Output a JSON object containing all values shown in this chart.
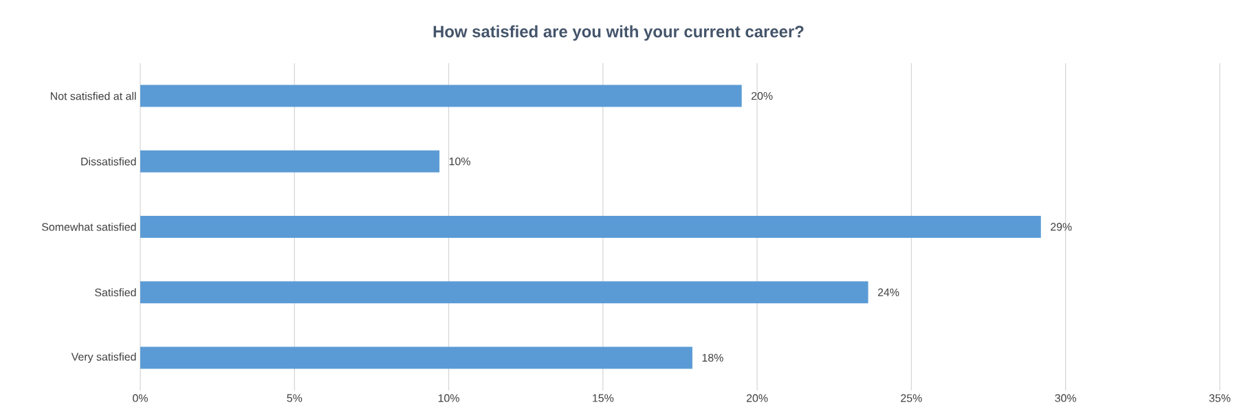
{
  "chart_data": {
    "type": "bar",
    "orientation": "horizontal",
    "title": "How satisfied are you with your current career?",
    "categories": [
      "Not satisfied at all",
      "Dissatisfied",
      "Somewhat satisfied",
      "Satisfied",
      "Very satisfied"
    ],
    "values": [
      19.5,
      9.7,
      29.2,
      23.6,
      17.9
    ],
    "value_labels": [
      "20%",
      "10%",
      "29%",
      "24%",
      "18%"
    ],
    "color": "#5b9bd5",
    "xlim": [
      0,
      35
    ],
    "xticks": [
      {
        "value": 0,
        "label": "0%"
      },
      {
        "value": 5,
        "label": "5%"
      },
      {
        "value": 10,
        "label": "10%"
      },
      {
        "value": 15,
        "label": "15%"
      },
      {
        "value": 20,
        "label": "20%"
      },
      {
        "value": 25,
        "label": "25%"
      },
      {
        "value": 30,
        "label": "30%"
      },
      {
        "value": 35,
        "label": "35%"
      }
    ],
    "grid": "x"
  }
}
